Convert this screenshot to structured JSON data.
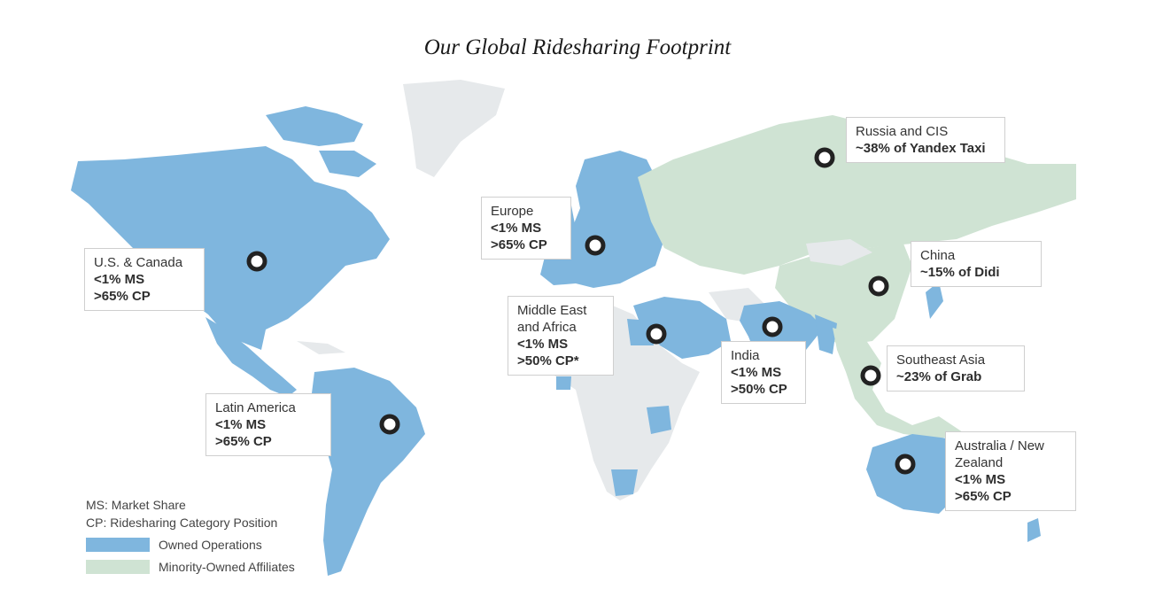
{
  "title": "Our Global Ridesharing Footprint",
  "colors": {
    "owned": "#7fb6de",
    "affiliate": "#cfe3d3",
    "other": "#e6e9eb",
    "marker": "#222222"
  },
  "labels": {
    "us_canada": {
      "l1": "U.S. & Canada",
      "l3": "<1% MS",
      "l4": ">65% CP"
    },
    "latin_america": {
      "l1": "Latin America",
      "l3": "<1% MS",
      "l4": ">65% CP"
    },
    "europe": {
      "l1": "Europe",
      "l3": "<1% MS",
      "l4": ">65% CP"
    },
    "middle_east_africa": {
      "l1": "Middle East",
      "l2": "and Africa",
      "l3": "<1% MS",
      "l4": ">50% CP*"
    },
    "india": {
      "l1": "India",
      "l3": "<1% MS",
      "l4": ">50% CP"
    },
    "russia_cis": {
      "l1": "Russia and CIS",
      "l3": "~38% of Yandex Taxi"
    },
    "china": {
      "l1": "China",
      "l3": "~15% of Didi"
    },
    "southeast_asia": {
      "l1": "Southeast Asia",
      "l3": "~23% of Grab"
    },
    "australia_nz": {
      "l1": "Australia / New",
      "l2": "Zealand",
      "l3": "<1% MS",
      "l4": ">65% CP"
    }
  },
  "legend": {
    "ms": "MS: Market Share",
    "cp": "CP: Ridesharing Category Position",
    "owned": "Owned Operations",
    "affiliate": "Minority-Owned Affiliates"
  }
}
